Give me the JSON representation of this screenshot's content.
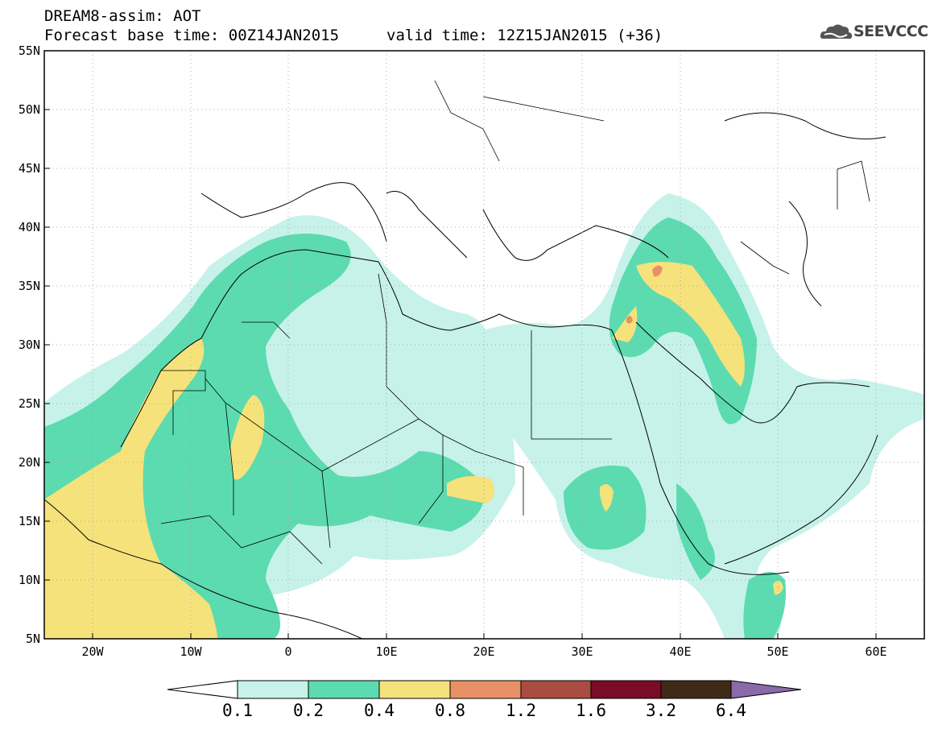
{
  "title": {
    "line1": "DREAM8-assim: AOT",
    "base_time": "Forecast base time: 00Z14JAN2015",
    "valid_time": "valid time: 12Z15JAN2015 (+36)"
  },
  "logo": {
    "text": "SEEVCCC"
  },
  "lat_labels": [
    "55N",
    "50N",
    "45N",
    "40N",
    "35N",
    "30N",
    "25N",
    "20N",
    "15N",
    "10N",
    "5N"
  ],
  "lon_labels": [
    "20W",
    "10W",
    "0",
    "10E",
    "20E",
    "30E",
    "40E",
    "50E",
    "60E"
  ],
  "colorbar": {
    "labels": [
      "0.1",
      "0.2",
      "0.4",
      "0.8",
      "1.2",
      "1.6",
      "3.2",
      "6.4"
    ],
    "colors": [
      "#c6f2ea",
      "#5cdbb0",
      "#f6e27a",
      "#e89166",
      "#a84d3f",
      "#7a0c26",
      "#3f2a18",
      "#8a6aa8"
    ]
  }
}
